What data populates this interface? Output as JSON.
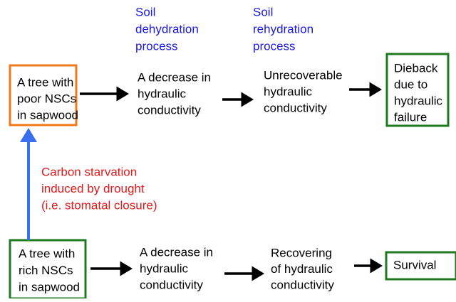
{
  "process_labels": [
    {
      "lines": [
        "Soil",
        "dehydration",
        "process"
      ]
    },
    {
      "lines": [
        "Soil",
        "rehydration",
        "process"
      ]
    }
  ],
  "nodes": [
    {
      "lines": [
        "A tree with",
        "poor NSCs",
        "in sapwood"
      ]
    },
    {
      "lines": [
        "A decrease in",
        "hydraulic",
        "conductivity"
      ]
    },
    {
      "lines": [
        "Unrecoverable",
        "hydraulic",
        "conductivity"
      ]
    },
    {
      "lines": [
        "Dieback",
        "due to",
        "hydraulic",
        "failure"
      ]
    },
    {
      "lines": [
        "A tree with",
        "rich NSCs",
        "in sapwood"
      ]
    },
    {
      "lines": [
        "A decrease in",
        "hydraulic",
        "conductivity"
      ]
    },
    {
      "lines": [
        "Recovering",
        "of hydraulic",
        "conductivity"
      ]
    },
    {
      "lines": [
        "Survival"
      ]
    }
  ],
  "cause": {
    "lines": [
      "Carbon starvation",
      "induced by drought",
      "(i.e. stomatal closure)"
    ]
  }
}
